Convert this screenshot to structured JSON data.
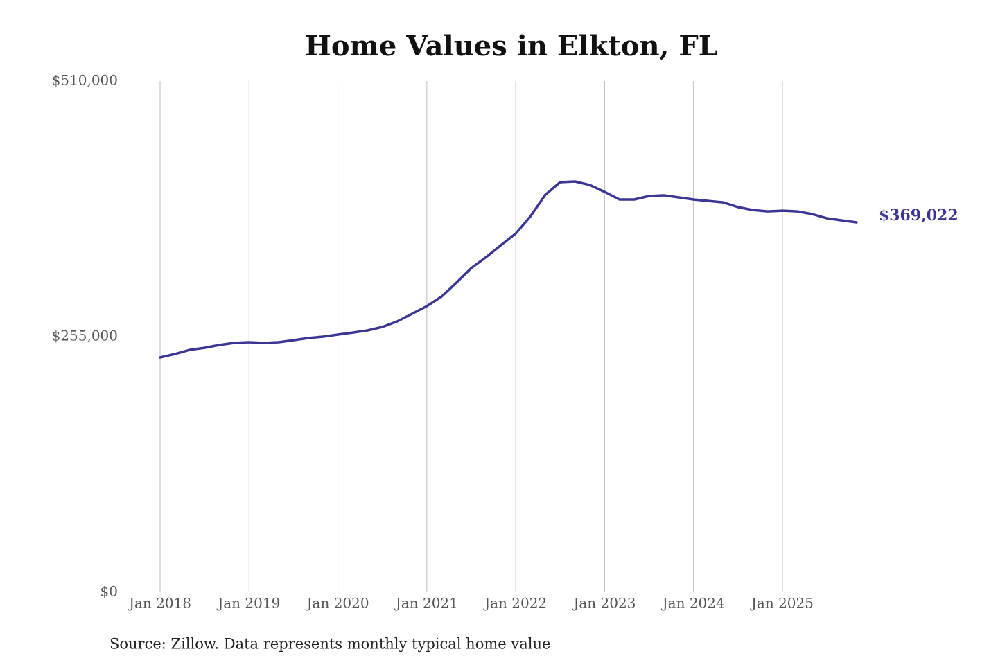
{
  "chart_data": {
    "type": "line",
    "title": "Home Values in Elkton, FL",
    "source": "Source: Zillow. Data represents monthly typical home value",
    "x": [
      "Jan 2018",
      "Mar 2018",
      "May 2018",
      "Jul 2018",
      "Sep 2018",
      "Nov 2018",
      "Jan 2019",
      "Mar 2019",
      "May 2019",
      "Jul 2019",
      "Sep 2019",
      "Nov 2019",
      "Jan 2020",
      "Mar 2020",
      "May 2020",
      "Jul 2020",
      "Sep 2020",
      "Nov 2020",
      "Jan 2021",
      "Mar 2021",
      "May 2021",
      "Jul 2021",
      "Sep 2021",
      "Nov 2021",
      "Jan 2022",
      "Mar 2022",
      "May 2022",
      "Jul 2022",
      "Sep 2022",
      "Nov 2022",
      "Jan 2023",
      "Mar 2023",
      "May 2023",
      "Jul 2023",
      "Sep 2023",
      "Nov 2023",
      "Jan 2024",
      "Mar 2024",
      "May 2024",
      "Jul 2024",
      "Sep 2024",
      "Nov 2024",
      "Jan 2025",
      "Mar 2025",
      "May 2025",
      "Jul 2025",
      "Sep 2025",
      "Nov 2025"
    ],
    "series": [
      {
        "name": "Typical home value",
        "color": "#3b3594",
        "values": [
          234250,
          237700,
          241850,
          243900,
          246700,
          248760,
          249450,
          248760,
          249450,
          251500,
          253600,
          255000,
          257050,
          259100,
          261200,
          264650,
          270200,
          277800,
          285400,
          295000,
          308900,
          323400,
          334400,
          346200,
          357900,
          375200,
          396600,
          409100,
          409800,
          406300,
          399400,
          391800,
          391800,
          395250,
          396000,
          393900,
          391800,
          390400,
          389000,
          384200,
          381400,
          380000,
          380700,
          380000,
          377300,
          373100,
          371000,
          369022
        ],
        "value_labels": [
          null,
          null,
          null,
          null,
          null,
          null,
          null,
          null,
          null,
          null,
          null,
          null,
          null,
          null,
          null,
          null,
          null,
          null,
          null,
          null,
          null,
          null,
          null,
          null,
          null,
          null,
          null,
          null,
          null,
          null,
          null,
          null,
          null,
          null,
          null,
          null,
          null,
          null,
          null,
          null,
          null,
          null,
          null,
          null,
          null,
          null,
          null,
          "$369,022"
        ]
      }
    ],
    "xticks": [
      "Jan 2018",
      "Jan 2019",
      "Jan 2020",
      "Jan 2021",
      "Jan 2022",
      "Jan 2023",
      "Jan 2024",
      "Jan 2025"
    ],
    "ylim": [
      0,
      510000
    ],
    "yticks": [
      {
        "value": 0,
        "label": "$0"
      },
      {
        "value": 255000,
        "label": "$255,000"
      },
      {
        "value": 510000,
        "label": "$510,000"
      }
    ],
    "grid": "x"
  }
}
